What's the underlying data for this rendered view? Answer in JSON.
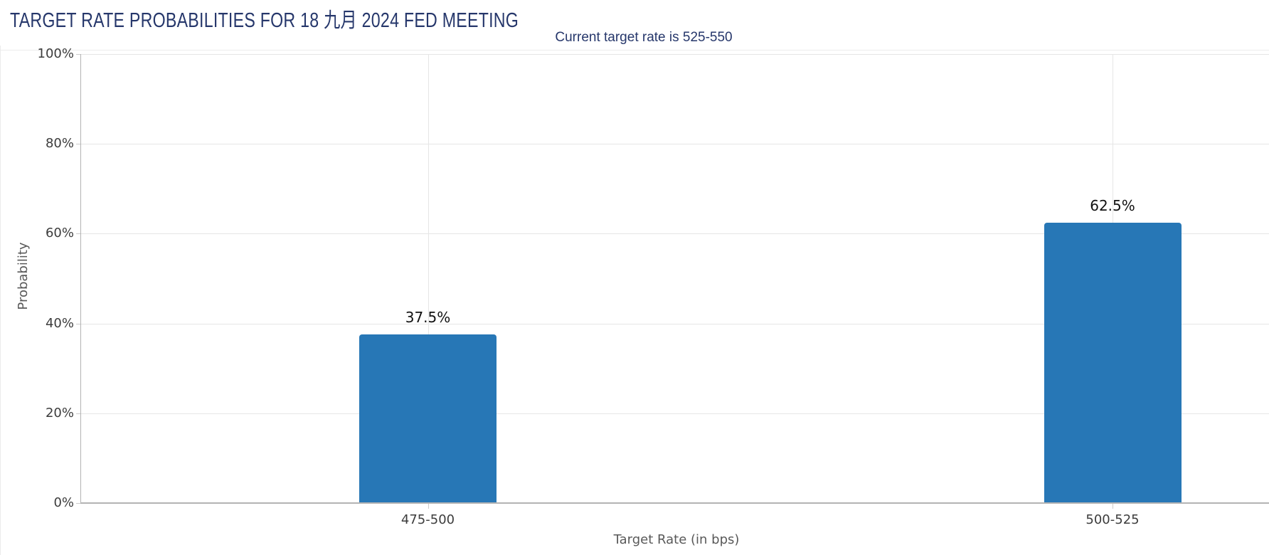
{
  "chart_data": {
    "type": "bar",
    "title": "TARGET RATE PROBABILITIES FOR 18 九月 2024 FED MEETING",
    "subtitle": "Current target rate is 525-550",
    "categories": [
      "475-500",
      "500-525"
    ],
    "values": [
      37.5,
      62.5
    ],
    "value_labels": [
      "37.5%",
      "62.5%"
    ],
    "xlabel": "Target Rate (in bps)",
    "ylabel": "Probability",
    "ylim": [
      0,
      100
    ],
    "ytick_step": 20,
    "ytick_labels": [
      "0%",
      "20%",
      "40%",
      "60%",
      "80%",
      "100%"
    ],
    "grid": true,
    "legend": "none",
    "colors": {
      "bar": "#2777b6",
      "title": "#26376b",
      "subtitle": "#26376b",
      "tick_label": "#3c3c3c",
      "axis_title": "#595959",
      "value_label": "#111111",
      "gridline": "#e6e6e6",
      "axis_line": "#b3b3b3",
      "tick_mark": "#cccccc"
    }
  }
}
